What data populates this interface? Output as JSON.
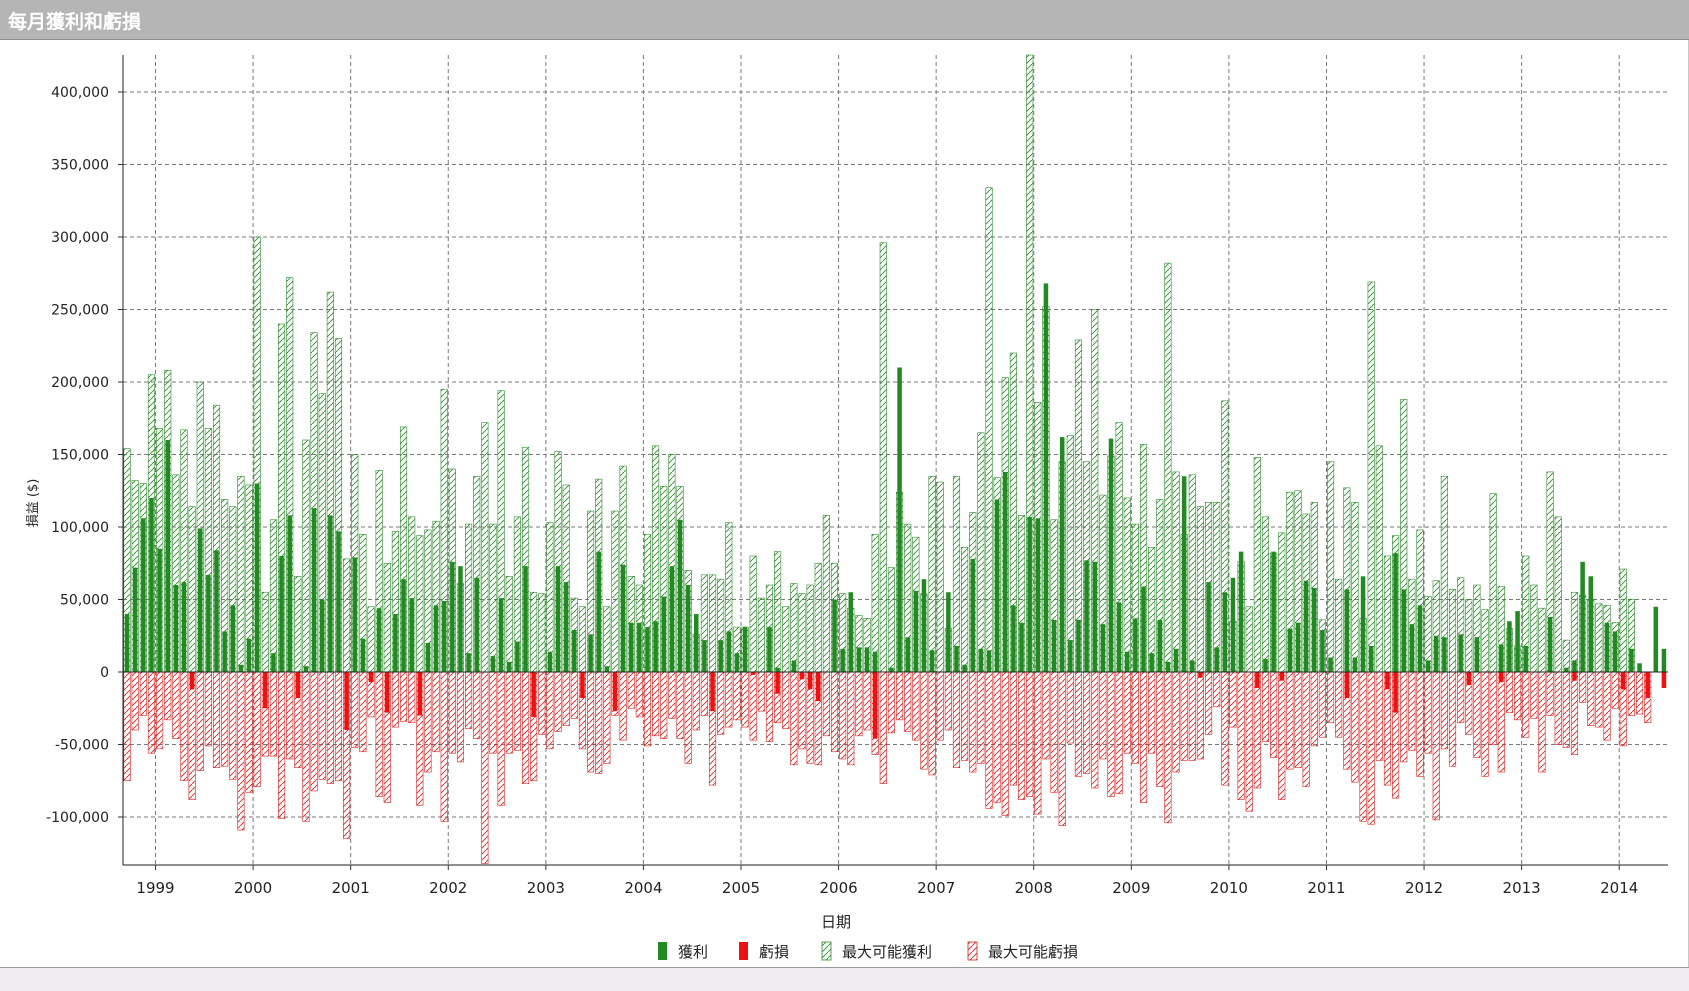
{
  "window": {
    "title": "每月獲利和虧損"
  },
  "colors": {
    "profit": "#238a23",
    "loss": "#ee1111",
    "maxProfit": "#2e8b2e",
    "maxLoss": "#dd2222",
    "grid": "#777777",
    "titlebar": "#b5b5b5"
  },
  "chart_data": {
    "type": "bar",
    "title": "",
    "xlabel": "日期",
    "ylabel": "損益 ($)",
    "ylim": [
      -135000,
      430000
    ],
    "yticks": [
      400000,
      350000,
      300000,
      250000,
      200000,
      150000,
      100000,
      50000,
      0,
      -50000,
      -100000
    ],
    "ytick_labels": [
      "400,000",
      "350,000",
      "300,000",
      "250,000",
      "200,000",
      "150,000",
      "100,000",
      "50,000",
      "0",
      "-50,000",
      "-100,000"
    ],
    "xtick_labels": [
      "1999",
      "2000",
      "2001",
      "2002",
      "2003",
      "2004",
      "2005",
      "2006",
      "2007",
      "2008",
      "2009",
      "2010",
      "2011",
      "2012",
      "2013",
      "2014"
    ],
    "start_month": "1998-09",
    "grid": true,
    "legend_position": "bottom",
    "legend": [
      {
        "name": "獲利",
        "style": "profit"
      },
      {
        "name": "虧損",
        "style": "loss"
      },
      {
        "name": "最大可能獲利",
        "style": "maxProfit"
      },
      {
        "name": "最大可能虧損",
        "style": "maxLoss"
      }
    ],
    "series": [
      {
        "name": "獲利",
        "values": [
          40000,
          72000,
          106000,
          120000,
          85000,
          160000,
          60000,
          62000,
          0,
          99000,
          67000,
          84000,
          28000,
          46000,
          5000,
          23000,
          130000,
          0,
          13000,
          80000,
          108000,
          0,
          4000,
          113000,
          50000,
          108000,
          97000,
          0,
          79000,
          23000,
          0,
          44000,
          0,
          40000,
          64000,
          51000,
          0,
          20000,
          46000,
          49000,
          76000,
          73000,
          13000,
          65000,
          0,
          11000,
          51000,
          7000,
          21000,
          73000,
          0,
          0,
          14000,
          73000,
          62000,
          29000,
          0,
          26000,
          83000,
          4000,
          0,
          74000,
          34000,
          34000,
          31000,
          35000,
          52000,
          73000,
          105000,
          60000,
          40000,
          22000,
          0,
          22000,
          28000,
          13000,
          31000,
          0,
          0,
          31000,
          3000,
          0,
          8000,
          0,
          0,
          0,
          0,
          50000,
          16000,
          55000,
          17000,
          17000,
          14000,
          0,
          3000,
          210000,
          24000,
          56000,
          64000,
          15000,
          0,
          55000,
          18000,
          5000,
          78000,
          16000,
          15000,
          119000,
          138000,
          46000,
          34000,
          107000,
          106000,
          268000,
          36000,
          162000,
          22000,
          36000,
          77000,
          76000,
          33000,
          161000,
          48000,
          14000,
          37000,
          59000,
          13000,
          36000,
          7000,
          16000,
          135000,
          8000,
          0,
          62000,
          17000,
          55000,
          65000,
          83000,
          0,
          0,
          9000,
          83000,
          0,
          30000,
          34000,
          63000,
          58000,
          29000,
          10000,
          0,
          57000,
          10000,
          66000,
          18000,
          0,
          0,
          82000,
          57000,
          33000,
          46000,
          8000,
          25000,
          24000,
          0,
          26000,
          0,
          24000,
          0,
          0,
          19000,
          35000,
          42000,
          18000,
          0,
          0,
          38000,
          0,
          3000,
          8000,
          76000,
          66000,
          0,
          34000,
          28000,
          0,
          16000,
          6000,
          0,
          45000,
          16000
        ]
      },
      {
        "name": "虧損",
        "values": [
          0,
          0,
          0,
          0,
          0,
          0,
          0,
          0,
          -12000,
          0,
          0,
          0,
          0,
          0,
          0,
          0,
          0,
          -25000,
          0,
          0,
          0,
          -18000,
          0,
          0,
          0,
          0,
          0,
          -40000,
          0,
          0,
          -7000,
          0,
          -28000,
          0,
          0,
          0,
          -30000,
          0,
          0,
          0,
          0,
          0,
          0,
          0,
          0,
          0,
          0,
          0,
          0,
          0,
          -31000,
          0,
          0,
          0,
          0,
          0,
          -18000,
          0,
          0,
          0,
          -27000,
          0,
          0,
          0,
          0,
          0,
          0,
          0,
          0,
          0,
          0,
          0,
          -27000,
          0,
          0,
          0,
          0,
          -2000,
          0,
          0,
          -15000,
          0,
          0,
          -5000,
          -12000,
          -20000,
          0,
          0,
          0,
          0,
          0,
          0,
          -46000,
          0,
          0,
          0,
          0,
          0,
          0,
          0,
          0,
          0,
          0,
          0,
          0,
          0,
          0,
          0,
          0,
          0,
          0,
          0,
          0,
          0,
          0,
          0,
          0,
          0,
          0,
          0,
          0,
          0,
          0,
          0,
          0,
          0,
          0,
          0,
          0,
          0,
          0,
          0,
          -4000,
          0,
          0,
          0,
          0,
          0,
          0,
          -11000,
          0,
          0,
          -6000,
          0,
          0,
          0,
          0,
          0,
          0,
          0,
          -18000,
          0,
          0,
          0,
          0,
          -12000,
          -28000,
          0,
          0,
          0,
          0,
          0,
          0,
          0,
          0,
          -9000,
          0,
          0,
          0,
          -7000,
          0,
          0,
          0,
          0,
          0,
          0,
          0,
          0,
          -6000,
          0,
          0,
          0,
          0,
          0,
          -12000,
          0,
          0,
          -18000,
          0,
          -11000,
          0,
          0,
          0
        ]
      },
      {
        "name": "最大可能獲利",
        "values": [
          154000,
          132000,
          130000,
          205000,
          168000,
          208000,
          136000,
          167000,
          114000,
          200000,
          168000,
          184000,
          119000,
          114000,
          135000,
          129000,
          300000,
          55000,
          105000,
          240000,
          272000,
          66000,
          160000,
          234000,
          192000,
          262000,
          230000,
          78000,
          150000,
          95000,
          45000,
          139000,
          75000,
          97000,
          169000,
          107000,
          94000,
          98000,
          104000,
          195000,
          140000,
          61000,
          102000,
          135000,
          172000,
          102000,
          194000,
          66000,
          107000,
          155000,
          55000,
          54000,
          103000,
          152000,
          129000,
          51000,
          45000,
          111000,
          133000,
          45000,
          111000,
          142000,
          66000,
          60000,
          95000,
          156000,
          128000,
          150000,
          128000,
          70000,
          26000,
          67000,
          67000,
          64000,
          103000,
          31000,
          31000,
          80000,
          51000,
          60000,
          83000,
          45000,
          61000,
          54000,
          60000,
          75000,
          108000,
          75000,
          54000,
          44000,
          39000,
          37000,
          95000,
          296000,
          72000,
          124000,
          102000,
          93000,
          54000,
          135000,
          131000,
          30000,
          135000,
          86000,
          110000,
          165000,
          334000,
          134000,
          203000,
          220000,
          108000,
          428000,
          186000,
          252000,
          105000,
          145000,
          163000,
          229000,
          145000,
          250000,
          122000,
          149000,
          172000,
          120000,
          102000,
          157000,
          86000,
          119000,
          282000,
          138000,
          95000,
          136000,
          114000,
          117000,
          117000,
          187000,
          35000,
          76000,
          45000,
          148000,
          107000,
          82000,
          96000,
          124000,
          125000,
          109000,
          117000,
          36000,
          145000,
          64000,
          127000,
          117000,
          37000,
          269000,
          156000,
          80000,
          94000,
          188000,
          64000,
          98000,
          52000,
          63000,
          135000,
          57000,
          65000,
          50000,
          60000,
          43000,
          123000,
          59000,
          30000,
          18000,
          80000,
          60000,
          44000,
          138000,
          107000,
          22000,
          55000,
          53000,
          50000,
          47000,
          46000,
          34000,
          71000,
          50000
        ]
      },
      {
        "name": "最大可能虧損",
        "values": [
          -75000,
          -40000,
          -30000,
          -56000,
          -53000,
          -33000,
          -46000,
          -75000,
          -88000,
          -68000,
          -51000,
          -66000,
          -65000,
          -74000,
          -109000,
          -83000,
          -79000,
          -58000,
          -58000,
          -101000,
          -60000,
          -66000,
          -103000,
          -82000,
          -74000,
          -77000,
          -75000,
          -115000,
          -52000,
          -55000,
          -31000,
          -86000,
          -90000,
          -38000,
          -34000,
          -35000,
          -92000,
          -69000,
          -55000,
          -103000,
          -56000,
          -62000,
          -39000,
          -46000,
          -132000,
          -56000,
          -92000,
          -56000,
          -54000,
          -77000,
          -75000,
          -43000,
          -53000,
          -41000,
          -37000,
          -32000,
          -53000,
          -69000,
          -70000,
          -63000,
          -30000,
          -47000,
          -25000,
          -31000,
          -51000,
          -44000,
          -46000,
          -32000,
          -46000,
          -63000,
          -40000,
          -30000,
          -78000,
          -43000,
          -38000,
          -33000,
          -38000,
          -47000,
          -27000,
          -48000,
          -35000,
          -39000,
          -64000,
          -53000,
          -63000,
          -64000,
          -44000,
          -55000,
          -60000,
          -64000,
          -44000,
          -40000,
          -57000,
          -77000,
          -42000,
          -33000,
          -41000,
          -47000,
          -67000,
          -71000,
          -47000,
          -40000,
          -66000,
          -61000,
          -69000,
          -63000,
          -94000,
          -90000,
          -99000,
          -78000,
          -88000,
          -86000,
          -98000,
          -60000,
          -83000,
          -106000,
          -49000,
          -72000,
          -70000,
          -80000,
          -60000,
          -86000,
          -84000,
          -56000,
          -63000,
          -90000,
          -56000,
          -79000,
          -104000,
          -69000,
          -61000,
          -61000,
          -60000,
          -43000,
          -24000,
          -78000,
          -38000,
          -88000,
          -96000,
          -80000,
          -48000,
          -59000,
          -88000,
          -67000,
          -66000,
          -79000,
          -51000,
          -45000,
          -35000,
          -45000,
          -67000,
          -76000,
          -103000,
          -105000,
          -61000,
          -78000,
          -87000,
          -62000,
          -54000,
          -72000,
          -56000,
          -102000,
          -53000,
          -65000,
          -35000,
          -43000,
          -59000,
          -72000,
          -50000,
          -69000,
          -28000,
          -33000,
          -45000,
          -32000,
          -69000,
          -30000,
          -50000,
          -52000,
          -57000,
          -21000,
          -37000,
          -38000,
          -47000,
          -25000,
          -51000,
          -30000,
          -29000,
          -35000
        ]
      }
    ]
  }
}
